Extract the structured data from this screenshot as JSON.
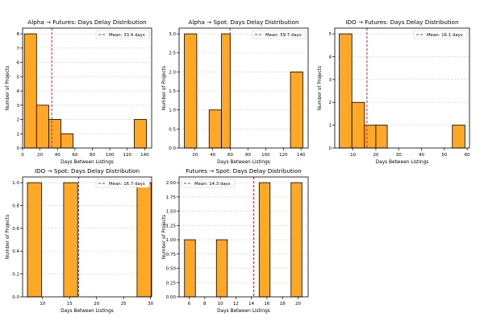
{
  "chart_data": [
    {
      "type": "bar",
      "title": "Alpha → Futures: Days Delay Distribution",
      "xlabel": "Days Between Listings",
      "ylabel": "Number of Projects",
      "xlim": [
        0,
        148
      ],
      "ylim": [
        0,
        8.4
      ],
      "xticks": [
        0,
        20,
        40,
        60,
        80,
        100,
        120,
        140
      ],
      "yticks": [
        0,
        1,
        2,
        3,
        4,
        5,
        6,
        7,
        8
      ],
      "bins": [
        {
          "x0": 2,
          "x1": 16,
          "count": 8
        },
        {
          "x0": 16,
          "x1": 30,
          "count": 3
        },
        {
          "x0": 30,
          "x1": 44,
          "count": 2
        },
        {
          "x0": 44,
          "x1": 58,
          "count": 1
        },
        {
          "x0": 128,
          "x1": 142,
          "count": 2
        }
      ],
      "mean": 33.4,
      "mean_label": "Mean: 33.4 days",
      "grid_y": true,
      "legend": "top-right"
    },
    {
      "type": "bar",
      "title": "Alpha → Spot: Days Delay Distribution",
      "xlabel": "Days Between Listings",
      "ylabel": "Number of Projects",
      "xlim": [
        2,
        148
      ],
      "ylim": [
        0,
        3.15
      ],
      "xticks": [
        20,
        40,
        60,
        80,
        100,
        120,
        140
      ],
      "yticks": [
        0.0,
        0.5,
        1.0,
        1.5,
        2.0,
        2.5,
        3.0
      ],
      "bins": [
        {
          "x0": 8,
          "x1": 22,
          "count": 3
        },
        {
          "x0": 36,
          "x1": 50,
          "count": 1
        },
        {
          "x0": 50,
          "x1": 60,
          "count": 3
        },
        {
          "x0": 128,
          "x1": 142,
          "count": 2
        }
      ],
      "mean": 59.7,
      "mean_label": "Mean: 59.7 days",
      "grid_y": true,
      "legend": "top-right"
    },
    {
      "type": "bar",
      "title": "IDO → Futures: Days Delay Distribution",
      "xlabel": "Days Between Listings",
      "ylabel": "Number of Projects",
      "xlim": [
        2,
        61
      ],
      "ylim": [
        0,
        5.25
      ],
      "xticks": [
        10,
        20,
        30,
        40,
        50,
        60
      ],
      "yticks": [
        0,
        1,
        2,
        3,
        4,
        5
      ],
      "bins": [
        {
          "x0": 4,
          "x1": 9.5,
          "count": 5
        },
        {
          "x0": 9.5,
          "x1": 15,
          "count": 2
        },
        {
          "x0": 15,
          "x1": 20,
          "count": 1
        },
        {
          "x0": 20,
          "x1": 25,
          "count": 1
        },
        {
          "x0": 53.5,
          "x1": 59,
          "count": 1
        }
      ],
      "mean": 16.1,
      "mean_label": "Mean: 16.1 days",
      "grid_y": true,
      "legend": "top-right"
    },
    {
      "type": "bar",
      "title": "IDO → Spot: Days Delay Distribution",
      "xlabel": "Days Between Listings",
      "ylabel": "Number of Projects",
      "xlim": [
        6.3,
        30.2
      ],
      "ylim": [
        0,
        1.05
      ],
      "xticks": [
        10,
        15,
        20,
        25,
        30
      ],
      "yticks": [
        0.0,
        0.2,
        0.4,
        0.6,
        0.8,
        1.0
      ],
      "bins": [
        {
          "x0": 7.2,
          "x1": 9.8,
          "count": 1
        },
        {
          "x0": 13.9,
          "x1": 16.5,
          "count": 1
        },
        {
          "x0": 27.5,
          "x1": 30.1,
          "count": 1
        }
      ],
      "mean": 16.7,
      "mean_label": "Mean: 16.7 days",
      "grid_y": true,
      "legend": "top-right"
    },
    {
      "type": "bar",
      "title": "Futures → Spot: Days Delay Distribution",
      "xlabel": "Days Between Listings",
      "ylabel": "Number of Projects",
      "xlim": [
        4.7,
        21.3
      ],
      "ylim": [
        0,
        2.1
      ],
      "xticks": [
        6,
        8,
        10,
        12,
        14,
        16,
        18,
        20
      ],
      "yticks": [
        0.0,
        0.25,
        0.5,
        0.75,
        1.0,
        1.25,
        1.5,
        1.75,
        2.0
      ],
      "ytick_labels": [
        "0.00",
        "0.25",
        "0.50",
        "0.75",
        "1.00",
        "1.25",
        "1.50",
        "1.75",
        "2.00"
      ],
      "bins": [
        {
          "x0": 5.4,
          "x1": 6.8,
          "count": 1
        },
        {
          "x0": 9.5,
          "x1": 10.9,
          "count": 1
        },
        {
          "x0": 15,
          "x1": 16.4,
          "count": 2
        },
        {
          "x0": 19.1,
          "x1": 20.5,
          "count": 2
        }
      ],
      "mean": 14.3,
      "mean_label": "Mean: 14.3 days",
      "grid_y": true,
      "legend": "top-left"
    }
  ],
  "colors": {
    "bar_fill": "#FFA726",
    "bar_edge": "#000000",
    "mean_line": "#C62828",
    "grid": "#C8C8C8"
  }
}
